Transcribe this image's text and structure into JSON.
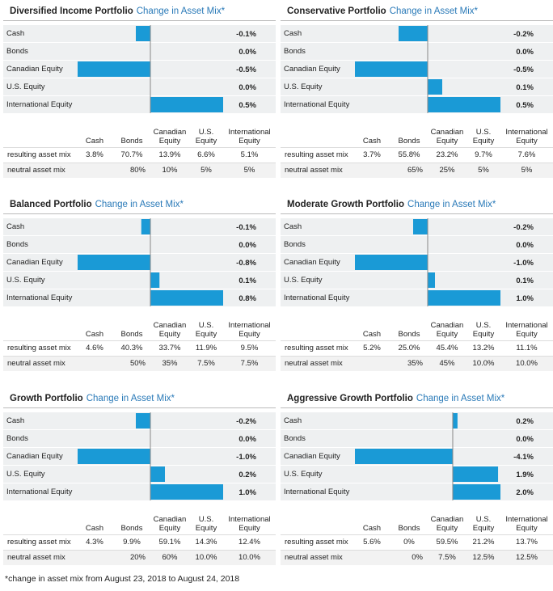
{
  "colors": {
    "bar": "#1a9ad6",
    "row_bg": "#eef0f1",
    "title_accent": "#2a7ab8"
  },
  "table_headers": [
    "",
    "Cash",
    "Bonds",
    "Canadian Equity",
    "U.S. Equity",
    "International Equity"
  ],
  "table_header_lines": [
    [
      ""
    ],
    [
      "Cash"
    ],
    [
      "Bonds"
    ],
    [
      "Canadian",
      "Equity"
    ],
    [
      "U.S.",
      "Equity"
    ],
    [
      "International",
      "Equity"
    ]
  ],
  "row_labels": {
    "resulting": "resulting asset mix",
    "neutral": "neutral asset mix"
  },
  "footnote": "*change in asset mix from August 23, 2018 to August 24, 2018",
  "chart_data": [
    {
      "type": "bar",
      "orientation": "horizontal",
      "title": "Diversified Income Portfolio",
      "subtitle": "Change in Asset Mix*",
      "categories": [
        "Cash",
        "Bonds",
        "Canadian Equity",
        "U.S. Equity",
        "International Equity"
      ],
      "values": [
        -0.1,
        0.0,
        -0.5,
        0.0,
        0.5
      ],
      "value_labels": [
        "-0.1%",
        "0.0%",
        "-0.5%",
        "0.0%",
        "0.5%"
      ],
      "xlim": [
        -0.5,
        0.5
      ],
      "resulting_mix": [
        "3.8%",
        "70.7%",
        "13.9%",
        "6.6%",
        "5.1%"
      ],
      "neutral_mix_label": "80%",
      "neutral_mix": [
        "10%",
        "5%",
        "5%"
      ]
    },
    {
      "type": "bar",
      "orientation": "horizontal",
      "title": "Conservative Portfolio",
      "subtitle": "Change in Asset Mix*",
      "categories": [
        "Cash",
        "Bonds",
        "Canadian Equity",
        "U.S. Equity",
        "International Equity"
      ],
      "values": [
        -0.2,
        0.0,
        -0.5,
        0.1,
        0.5
      ],
      "value_labels": [
        "-0.2%",
        "0.0%",
        "-0.5%",
        "0.1%",
        "0.5%"
      ],
      "xlim": [
        -0.5,
        0.5
      ],
      "resulting_mix": [
        "3.7%",
        "55.8%",
        "23.2%",
        "9.7%",
        "7.6%"
      ],
      "neutral_mix_label": "65%",
      "neutral_mix": [
        "25%",
        "5%",
        "5%"
      ]
    },
    {
      "type": "bar",
      "orientation": "horizontal",
      "title": "Balanced Portfolio",
      "subtitle": "Change in Asset Mix*",
      "categories": [
        "Cash",
        "Bonds",
        "Canadian Equity",
        "U.S. Equity",
        "International Equity"
      ],
      "values": [
        -0.1,
        0.0,
        -0.8,
        0.1,
        0.8
      ],
      "value_labels": [
        "-0.1%",
        "0.0%",
        "-0.8%",
        "0.1%",
        "0.8%"
      ],
      "xlim": [
        -0.8,
        0.8
      ],
      "resulting_mix": [
        "4.6%",
        "40.3%",
        "33.7%",
        "11.9%",
        "9.5%"
      ],
      "neutral_mix_label": "50%",
      "neutral_mix": [
        "35%",
        "7.5%",
        "7.5%"
      ]
    },
    {
      "type": "bar",
      "orientation": "horizontal",
      "title": "Moderate Growth Portfolio",
      "subtitle": "Change in Asset Mix*",
      "categories": [
        "Cash",
        "Bonds",
        "Canadian Equity",
        "U.S. Equity",
        "International Equity"
      ],
      "values": [
        -0.2,
        0.0,
        -1.0,
        0.1,
        1.0
      ],
      "value_labels": [
        "-0.2%",
        "0.0%",
        "-1.0%",
        "0.1%",
        "1.0%"
      ],
      "xlim": [
        -1.0,
        1.0
      ],
      "resulting_mix": [
        "5.2%",
        "25.0%",
        "45.4%",
        "13.2%",
        "11.1%"
      ],
      "neutral_mix_label": "35%",
      "neutral_mix": [
        "45%",
        "10.0%",
        "10.0%"
      ]
    },
    {
      "type": "bar",
      "orientation": "horizontal",
      "title": "Growth Portfolio",
      "subtitle": "Change in Asset Mix*",
      "categories": [
        "Cash",
        "Bonds",
        "Canadian Equity",
        "U.S. Equity",
        "International Equity"
      ],
      "values": [
        -0.2,
        0.0,
        -1.0,
        0.2,
        1.0
      ],
      "value_labels": [
        "-0.2%",
        "0.0%",
        "-1.0%",
        "0.2%",
        "1.0%"
      ],
      "xlim": [
        -1.0,
        1.0
      ],
      "resulting_mix": [
        "4.3%",
        "9.9%",
        "59.1%",
        "14.3%",
        "12.4%"
      ],
      "neutral_mix_label": "20%",
      "neutral_mix": [
        "60%",
        "10.0%",
        "10.0%"
      ]
    },
    {
      "type": "bar",
      "orientation": "horizontal",
      "title": "Aggressive Growth Portfolio",
      "subtitle": "Change in Asset Mix*",
      "categories": [
        "Cash",
        "Bonds",
        "Canadian Equity",
        "U.S. Equity",
        "International Equity"
      ],
      "values": [
        0.2,
        0.0,
        -4.1,
        1.9,
        2.0
      ],
      "value_labels": [
        "0.2%",
        "0.0%",
        "-4.1%",
        "1.9%",
        "2.0%"
      ],
      "xlim": [
        -4.1,
        2.0
      ],
      "resulting_mix": [
        "5.6%",
        "0%",
        "59.5%",
        "21.2%",
        "13.7%"
      ],
      "neutral_mix_label": "0%",
      "neutral_mix": [
        "7.5%",
        "12.5%",
        "12.5%"
      ]
    }
  ]
}
